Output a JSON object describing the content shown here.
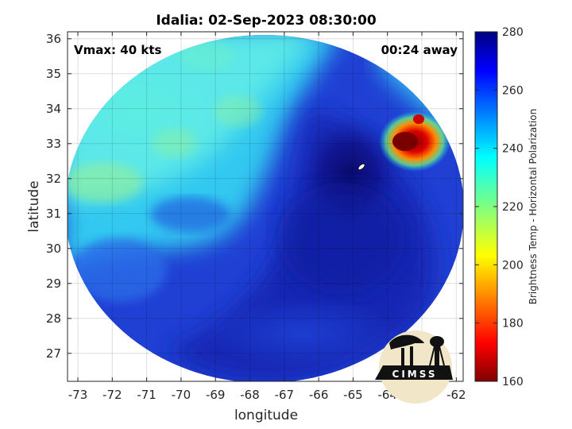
{
  "title": "Idalia: 02-Sep-2023 08:30:00",
  "annotations": {
    "vmax": "Vmax: 40 kts",
    "time_away": "00:24 away"
  },
  "axes": {
    "xlabel": "longitude",
    "ylabel": "latitude",
    "xlim": [
      -73.3,
      -61.8
    ],
    "ylim": [
      26.2,
      36.2
    ],
    "xticks": [
      "-73",
      "-72",
      "-71",
      "-70",
      "-69",
      "-68",
      "-67",
      "-66",
      "-65",
      "-64",
      "-63",
      "-62"
    ],
    "yticks": [
      "27",
      "28",
      "29",
      "30",
      "31",
      "32",
      "33",
      "34",
      "35",
      "36"
    ],
    "grid": true
  },
  "colorbar": {
    "label": "Brightness Temp - Horizontal Polarization",
    "range": [
      160,
      280
    ],
    "ticks": [
      "280",
      "260",
      "240",
      "220",
      "200",
      "180",
      "160"
    ],
    "colormap": "jet"
  },
  "features": {
    "storm_center": {
      "lon": -64.8,
      "lat": 32.3
    },
    "deep_convection": {
      "lon": -63.3,
      "lat": 33.1,
      "min_temp": 165
    }
  },
  "logo": {
    "text": "CIMSS"
  }
}
